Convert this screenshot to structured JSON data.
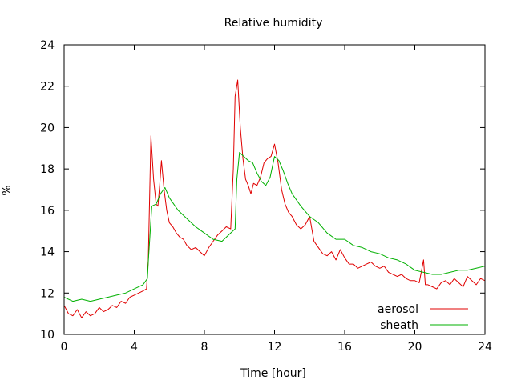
{
  "chart_data": {
    "type": "line",
    "title": "Relative humidity",
    "xlabel": "Time [hour]",
    "ylabel": "%",
    "xlim": [
      0,
      24
    ],
    "ylim": [
      10,
      24
    ],
    "xticks": [
      0,
      4,
      8,
      12,
      16,
      20,
      24
    ],
    "yticks": [
      10,
      12,
      14,
      16,
      18,
      20,
      22,
      24
    ],
    "grid": false,
    "legend_position": "bottom-right",
    "series": [
      {
        "name": "aerosol",
        "color": "#e00000",
        "x": [
          0,
          0.25,
          0.5,
          0.75,
          1,
          1.25,
          1.5,
          1.75,
          2,
          2.25,
          2.5,
          2.75,
          3,
          3.25,
          3.5,
          3.75,
          4,
          4.25,
          4.5,
          4.7,
          4.8,
          4.95,
          5.1,
          5.25,
          5.35,
          5.45,
          5.55,
          5.7,
          5.85,
          6,
          6.2,
          6.4,
          6.6,
          6.8,
          7,
          7.25,
          7.5,
          7.75,
          8,
          8.25,
          8.5,
          8.75,
          9,
          9.25,
          9.5,
          9.65,
          9.75,
          9.9,
          10.05,
          10.2,
          10.35,
          10.5,
          10.65,
          10.8,
          11,
          11.2,
          11.4,
          11.6,
          11.8,
          12,
          12.2,
          12.4,
          12.6,
          12.8,
          13,
          13.25,
          13.5,
          13.75,
          14,
          14.25,
          14.5,
          14.75,
          15,
          15.25,
          15.5,
          15.75,
          16,
          16.25,
          16.5,
          16.75,
          17,
          17.25,
          17.5,
          17.75,
          18,
          18.25,
          18.5,
          18.75,
          19,
          19.25,
          19.5,
          19.75,
          20,
          20.25,
          20.5,
          20.6,
          20.75,
          21,
          21.25,
          21.5,
          21.75,
          22,
          22.25,
          22.5,
          22.75,
          23,
          23.25,
          23.5,
          23.75,
          24
        ],
        "y": [
          11.4,
          11.0,
          10.9,
          11.2,
          10.8,
          11.1,
          10.9,
          11.0,
          11.3,
          11.1,
          11.2,
          11.4,
          11.3,
          11.6,
          11.5,
          11.8,
          11.9,
          12.0,
          12.1,
          12.2,
          13.6,
          19.6,
          17.5,
          16.3,
          16.2,
          17.2,
          18.4,
          17.0,
          16.0,
          15.4,
          15.2,
          14.9,
          14.7,
          14.6,
          14.3,
          14.1,
          14.2,
          14.0,
          13.8,
          14.2,
          14.5,
          14.8,
          15.0,
          15.2,
          15.1,
          18.0,
          21.5,
          22.3,
          20.0,
          18.5,
          17.5,
          17.2,
          16.8,
          17.3,
          17.2,
          17.6,
          18.3,
          18.5,
          18.6,
          19.2,
          18.3,
          17.0,
          16.3,
          15.9,
          15.7,
          15.3,
          15.1,
          15.3,
          15.7,
          14.5,
          14.2,
          13.9,
          13.8,
          14.0,
          13.6,
          14.1,
          13.7,
          13.4,
          13.4,
          13.2,
          13.3,
          13.4,
          13.5,
          13.3,
          13.2,
          13.3,
          13.0,
          12.9,
          12.8,
          12.9,
          12.7,
          12.6,
          12.6,
          12.5,
          13.6,
          12.4,
          12.4,
          12.3,
          12.2,
          12.5,
          12.6,
          12.4,
          12.7,
          12.5,
          12.3,
          12.8,
          12.6,
          12.4,
          12.7,
          12.6
        ]
      },
      {
        "name": "sheath",
        "color": "#00b000",
        "x": [
          0,
          0.5,
          1,
          1.5,
          2,
          2.5,
          3,
          3.5,
          4,
          4.5,
          4.75,
          4.8,
          5,
          5.25,
          5.5,
          5.75,
          6,
          6.5,
          7,
          7.5,
          8,
          8.5,
          9,
          9.5,
          9.75,
          9.85,
          10,
          10.25,
          10.5,
          10.75,
          11,
          11.25,
          11.5,
          11.75,
          12,
          12.25,
          12.5,
          12.75,
          13,
          13.5,
          14,
          14.5,
          15,
          15.5,
          16,
          16.5,
          17,
          17.5,
          18,
          18.5,
          19,
          19.5,
          20,
          20.5,
          21,
          21.5,
          22,
          22.5,
          23,
          23.5,
          24
        ],
        "y": [
          11.8,
          11.6,
          11.7,
          11.6,
          11.7,
          11.8,
          11.9,
          12.0,
          12.2,
          12.4,
          12.7,
          13.5,
          16.2,
          16.3,
          16.8,
          17.1,
          16.6,
          16.0,
          15.6,
          15.2,
          14.9,
          14.6,
          14.5,
          14.9,
          15.1,
          17.5,
          18.8,
          18.6,
          18.4,
          18.3,
          17.8,
          17.4,
          17.2,
          17.6,
          18.6,
          18.4,
          17.9,
          17.3,
          16.8,
          16.2,
          15.7,
          15.4,
          14.9,
          14.6,
          14.6,
          14.3,
          14.2,
          14.0,
          13.9,
          13.7,
          13.6,
          13.4,
          13.1,
          13.0,
          12.9,
          12.9,
          13.0,
          13.1,
          13.1,
          13.2,
          13.3
        ]
      }
    ]
  }
}
